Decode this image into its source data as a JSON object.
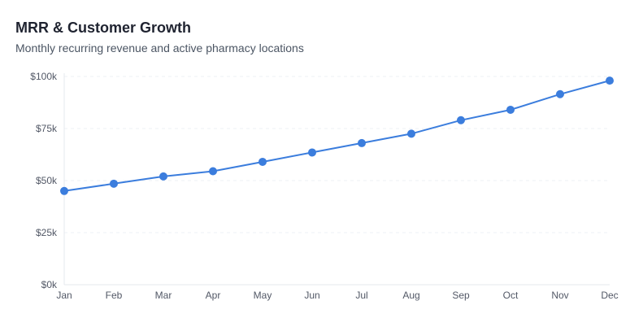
{
  "chart_data": {
    "type": "line",
    "title": "MRR & Customer Growth",
    "subtitle": "Monthly recurring revenue and active pharmacy locations",
    "categories": [
      "Jan",
      "Feb",
      "Mar",
      "Apr",
      "May",
      "Jun",
      "Jul",
      "Aug",
      "Sep",
      "Oct",
      "Nov",
      "Dec"
    ],
    "series": [
      {
        "values": [
          45000,
          48500,
          52000,
          54500,
          59000,
          63500,
          68000,
          72500,
          79000,
          84000,
          91500,
          98000
        ]
      }
    ],
    "ylim": [
      0,
      100000
    ],
    "yticks": [
      {
        "value": 0,
        "label": "$0k"
      },
      {
        "value": 25000,
        "label": "$25k"
      },
      {
        "value": 50000,
        "label": "$50k"
      },
      {
        "value": 75000,
        "label": "$75k"
      },
      {
        "value": 100000,
        "label": "$100k"
      }
    ],
    "grid": true,
    "colors": {
      "line": "#3b7ddd",
      "grid": "#eef0f4",
      "axis": "#e5e8ee"
    }
  }
}
